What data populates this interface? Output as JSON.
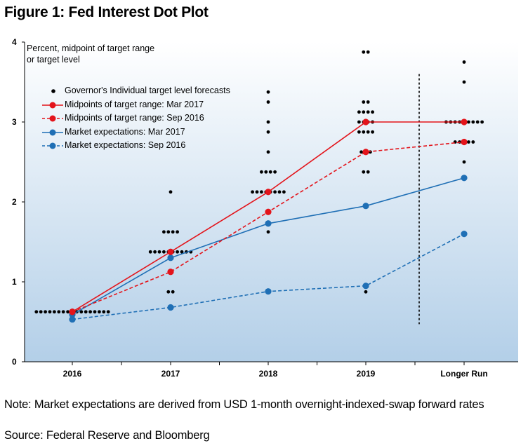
{
  "figure_title": "Figure 1: Fed Interest Dot Plot",
  "note": "Note: Market expectations are derived from USD 1-month overnight-indexed-swap forward rates",
  "source": "Source: Federal Reserve and Bloomberg",
  "colors": {
    "red": "#e3141b",
    "blue": "#1f6fb5",
    "dots": "#000000",
    "bg_top": "#ffffff",
    "bg_bottom": "#b3cfe8"
  },
  "chart_data": {
    "type": "scatter",
    "ylabel": "Percent, midpoint of target range or target level",
    "categories": [
      "2016",
      "2017",
      "2018",
      "2019",
      "Longer Run"
    ],
    "y_ticks": [
      "0",
      "1",
      "2",
      "3",
      "4"
    ],
    "ylim": [
      0,
      4
    ],
    "grid": false,
    "legend_position": "top-left",
    "divider_between": [
      "2019",
      "Longer Run"
    ],
    "series": [
      {
        "name": "Governor's Individual target level forecasts",
        "style": "dots",
        "points": [
          {
            "x": "2016",
            "y": 0.625,
            "count": 17
          },
          {
            "x": "2017",
            "y": 2.125,
            "count": 1
          },
          {
            "x": "2017",
            "y": 1.625,
            "count": 4
          },
          {
            "x": "2017",
            "y": 1.375,
            "count": 10
          },
          {
            "x": "2017",
            "y": 0.875,
            "count": 2
          },
          {
            "x": "2018",
            "y": 3.375,
            "count": 1
          },
          {
            "x": "2018",
            "y": 3.25,
            "count": 1
          },
          {
            "x": "2018",
            "y": 3.0,
            "count": 1
          },
          {
            "x": "2018",
            "y": 2.875,
            "count": 1
          },
          {
            "x": "2018",
            "y": 2.625,
            "count": 1
          },
          {
            "x": "2018",
            "y": 2.375,
            "count": 4
          },
          {
            "x": "2018",
            "y": 2.125,
            "count": 8
          },
          {
            "x": "2018",
            "y": 1.875,
            "count": 1
          },
          {
            "x": "2018",
            "y": 1.625,
            "count": 1
          },
          {
            "x": "2019",
            "y": 3.875,
            "count": 2
          },
          {
            "x": "2019",
            "y": 3.25,
            "count": 2
          },
          {
            "x": "2019",
            "y": 3.125,
            "count": 4
          },
          {
            "x": "2019",
            "y": 3.0,
            "count": 4
          },
          {
            "x": "2019",
            "y": 2.875,
            "count": 4
          },
          {
            "x": "2019",
            "y": 2.625,
            "count": 3
          },
          {
            "x": "2019",
            "y": 2.375,
            "count": 2
          },
          {
            "x": "2019",
            "y": 0.875,
            "count": 1
          },
          {
            "x": "Longer Run",
            "y": 3.75,
            "count": 1
          },
          {
            "x": "Longer Run",
            "y": 3.5,
            "count": 1
          },
          {
            "x": "Longer Run",
            "y": 3.0,
            "count": 9
          },
          {
            "x": "Longer Run",
            "y": 2.75,
            "count": 5
          },
          {
            "x": "Longer Run",
            "y": 2.5,
            "count": 1
          }
        ]
      },
      {
        "name": "Midpoints of target range: Mar 2017",
        "style": "solid",
        "color": "#e3141b",
        "values": [
          0.625,
          1.375,
          2.125,
          3.0,
          3.0
        ]
      },
      {
        "name": "Midpoints of target range: Sep 2016",
        "style": "dashed",
        "color": "#e3141b",
        "values": [
          0.625,
          1.125,
          1.875,
          2.625,
          2.75
        ]
      },
      {
        "name": "Market expectations: Mar 2017",
        "style": "solid",
        "color": "#1f6fb5",
        "values": [
          0.59,
          1.3,
          1.73,
          1.95,
          2.3
        ]
      },
      {
        "name": "Market expectations: Sep 2016",
        "style": "dashed",
        "color": "#1f6fb5",
        "values": [
          0.53,
          0.68,
          0.88,
          0.95,
          1.6
        ]
      }
    ]
  }
}
